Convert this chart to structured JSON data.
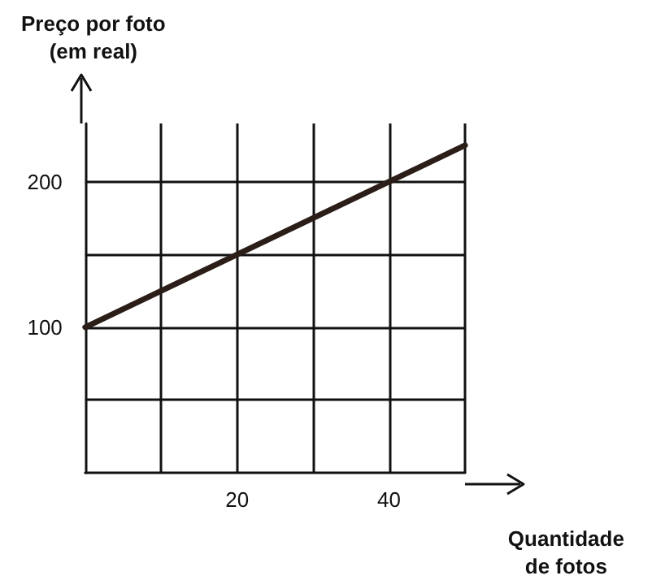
{
  "chart_data": {
    "type": "line",
    "xlabel": "Quantidade\nde fotos",
    "ylabel": "Preço por foto\n(em real)",
    "x": [
      0,
      50
    ],
    "series": [
      {
        "color": "#2b1d17",
        "values": [
          100,
          225
        ]
      }
    ],
    "xlim": [
      0,
      50
    ],
    "ylim": [
      0,
      240
    ],
    "xticks": [
      {
        "value": 10,
        "label": null
      },
      20,
      {
        "value": 30,
        "label": null
      },
      40,
      {
        "value": 50,
        "label": null
      }
    ],
    "yticks": [
      {
        "value": 50,
        "label": null
      },
      100,
      {
        "value": 150,
        "label": null
      },
      200
    ],
    "grid": true,
    "marker": "none",
    "line_style": "solid"
  }
}
